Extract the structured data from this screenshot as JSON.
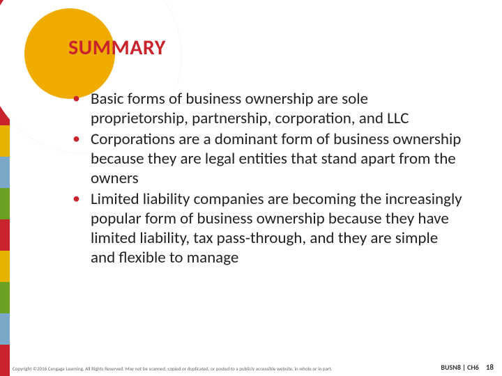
{
  "title": {
    "text": "SUMMARY",
    "color": "#c9242c",
    "fontsize": 30
  },
  "accent_circle_color": "#f0ab00",
  "left_stripe_colors": [
    "#c9242c",
    "#e8b200",
    "#6aa122",
    "#c9242c",
    "#e8b200",
    "#7aa8c9",
    "#6aa122",
    "#c9242c",
    "#e8b200",
    "#6aa122",
    "#7aa8c9",
    "#c9242c"
  ],
  "bullets": {
    "color": "#c9242c",
    "items": [
      "Basic forms of business ownership are sole proprietorship, partnership, corporation, and LLC",
      "Corporations are a dominant form of business ownership because they are legal entities that stand apart from the owners",
      "Limited liability companies are becoming the increasingly popular form of business ownership because they have limited liability, tax pass-through, and they are simple and flexible to manage"
    ]
  },
  "footer": {
    "copyright": "Copyright ©2016 Cengage Learning. All Rights Reserved. May not be scanned, copied or duplicated, or posted to a publicly accessible website, in whole or in part.",
    "ref": "BUSN8 | CH6",
    "page": "18"
  },
  "background_color": "#ffffff"
}
